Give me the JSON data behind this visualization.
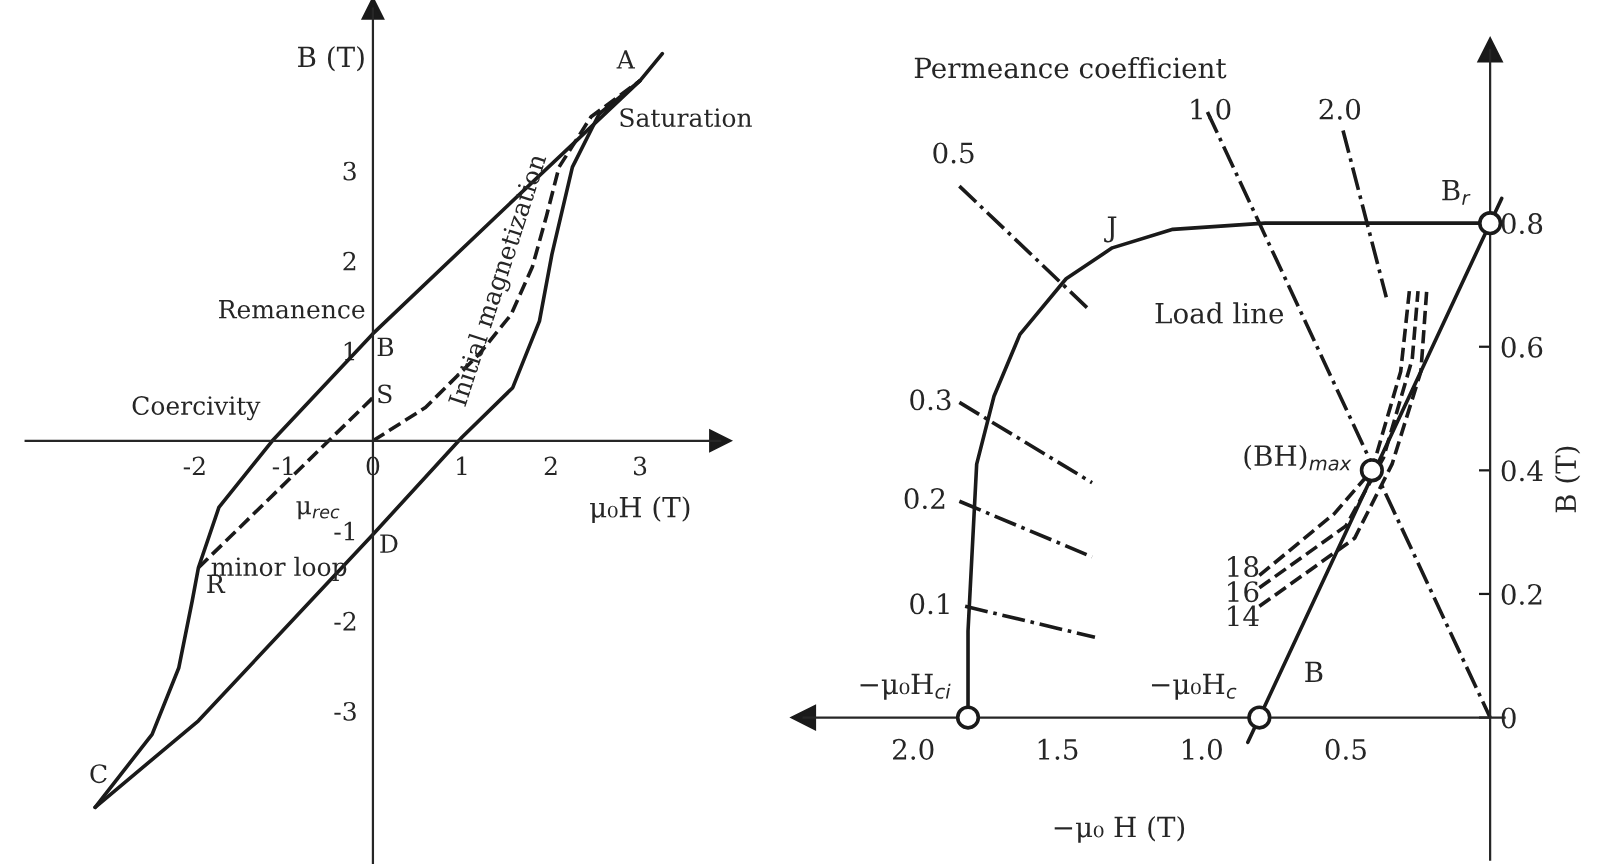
{
  "chart_data": [
    {
      "type": "line",
      "xlabel": "μ₀H (T)",
      "ylabel": "B (T)",
      "xlim": [
        -3.9,
        3.9
      ],
      "ylim": [
        -4.7,
        4.8
      ],
      "xticks": [
        -2,
        -1,
        0,
        1,
        2,
        3
      ],
      "yticks": [
        -3,
        -2,
        -1,
        1,
        2,
        3
      ],
      "grid": false,
      "legend": false,
      "series": [
        {
          "color": "#1a1a1a",
          "line_style": "solid",
          "x": [
            3.25,
            3.0,
            1.5,
            0,
            -1.13,
            -1.73,
            -1.96,
            -2.03,
            -2.18,
            -2.48,
            -3.12
          ],
          "values": [
            4.3,
            4.0,
            2.6,
            1.19,
            0,
            -0.74,
            -1.41,
            -1.78,
            -2.52,
            -3.26,
            -4.07
          ]
        },
        {
          "color": "#1a1a1a",
          "line_style": "solid",
          "x": [
            -3.12,
            -1.96,
            0,
            1.0,
            1.57,
            1.87,
            2.01,
            2.24,
            2.54,
            3.0
          ],
          "values": [
            -4.07,
            -3.11,
            -1.04,
            0.04,
            0.59,
            1.33,
            2.07,
            3.04,
            3.63,
            4.0
          ]
        },
        {
          "color": "#1a1a1a",
          "line_style": "dashed",
          "x": [
            0,
            0.59,
            1.19,
            1.55,
            1.79,
            1.95,
            2.09,
            2.45,
            3.0
          ],
          "values": [
            0,
            0.37,
            0.96,
            1.4,
            1.93,
            2.5,
            3.04,
            3.6,
            4.0
          ]
        },
        {
          "color": "#1a1a1a",
          "line_style": "dashed",
          "x": [
            -1.96,
            0
          ],
          "values": [
            -1.41,
            0.48
          ]
        }
      ],
      "annotations": [
        "A",
        "Saturation",
        "Remanence",
        "B",
        "S",
        "Coercivity",
        "Initial magnetization",
        "μ$_{rec}$",
        "minor loop",
        "D",
        "R",
        "C"
      ]
    },
    {
      "type": "line",
      "xlabel": "−μ₀ H (T)",
      "ylabel": "B (T)",
      "xlim": [
        2.38,
        -0.05
      ],
      "ylim": [
        -0.23,
        1.08
      ],
      "xticks": [
        {
          "value": 2.0,
          "label": "2.0"
        },
        {
          "value": 1.5,
          "label": "1.5"
        },
        {
          "value": 1.0,
          "label": "1.0"
        },
        0.5
      ],
      "yticks": [
        0,
        0.2,
        0.4,
        0.6,
        0.8
      ],
      "grid": false,
      "legend": false,
      "series": [
        {
          "color": "#1a1a1a",
          "line_style": "solid",
          "x": [
            1.81,
            1.81,
            1.78,
            1.72,
            1.63,
            1.47,
            1.31,
            1.1,
            0.78,
            0
          ],
          "values": [
            0,
            0.14,
            0.41,
            0.52,
            0.62,
            0.71,
            0.76,
            0.79,
            0.8,
            0.8
          ]
        },
        {
          "color": "#1a1a1a",
          "line_style": "solid",
          "x": [
            0.84,
            -0.04
          ],
          "values": [
            -0.04,
            0.84
          ]
        },
        {
          "color": "#1a1a1a",
          "line_style": "dashdot",
          "x": [
            0.98,
            0
          ],
          "values": [
            0.98,
            0
          ]
        },
        {
          "color": "#1a1a1a",
          "line_style": "dashdot",
          "x": [
            0.51,
            0.36
          ],
          "values": [
            0.95,
            0.68
          ]
        },
        {
          "color": "#1a1a1a",
          "line_style": "dashdot",
          "x": [
            1.84,
            1.39
          ],
          "values": [
            0.86,
            0.66
          ]
        },
        {
          "color": "#1a1a1a",
          "line_style": "dashdot",
          "x": [
            1.84,
            1.38
          ],
          "values": [
            0.51,
            0.38
          ]
        },
        {
          "color": "#1a1a1a",
          "line_style": "dashdot",
          "x": [
            1.84,
            1.38
          ],
          "values": [
            0.35,
            0.26
          ]
        },
        {
          "color": "#1a1a1a",
          "line_style": "dashdot",
          "x": [
            1.82,
            1.37
          ],
          "values": [
            0.18,
            0.13
          ]
        },
        {
          "color": "#1a1a1a",
          "line_style": "dashed",
          "x": [
            0.8,
            0.54,
            0.41,
            0.31,
            0.28
          ],
          "values": [
            0.23,
            0.33,
            0.4,
            0.56,
            0.69
          ]
        },
        {
          "color": "#1a1a1a",
          "line_style": "dashed",
          "x": [
            0.8,
            0.5,
            0.37,
            0.27,
            0.25
          ],
          "values": [
            0.21,
            0.31,
            0.42,
            0.58,
            0.69
          ]
        },
        {
          "color": "#1a1a1a",
          "line_style": "dashed",
          "x": [
            0.8,
            0.47,
            0.34,
            0.24,
            0.22
          ],
          "values": [
            0.18,
            0.29,
            0.41,
            0.56,
            0.69
          ]
        },
        {
          "type": "scatter",
          "color": "#1a1a1a",
          "marker": "circle",
          "x": [
            1.81,
            0.8,
            0,
            0.41
          ],
          "values": [
            0,
            0,
            0.8,
            0.4
          ]
        }
      ],
      "annotations": [
        "Permeance coefficient",
        "0.5",
        "1.0",
        "2.0",
        "0.3",
        "0.2",
        "0.1",
        "J",
        "B$_{r}$",
        "Load line",
        "(BH)$_{max}$",
        "18",
        "16",
        "14",
        "B",
        "−μ₀H$_{c}$",
        "−μ₀H$_{ci}$"
      ]
    }
  ]
}
